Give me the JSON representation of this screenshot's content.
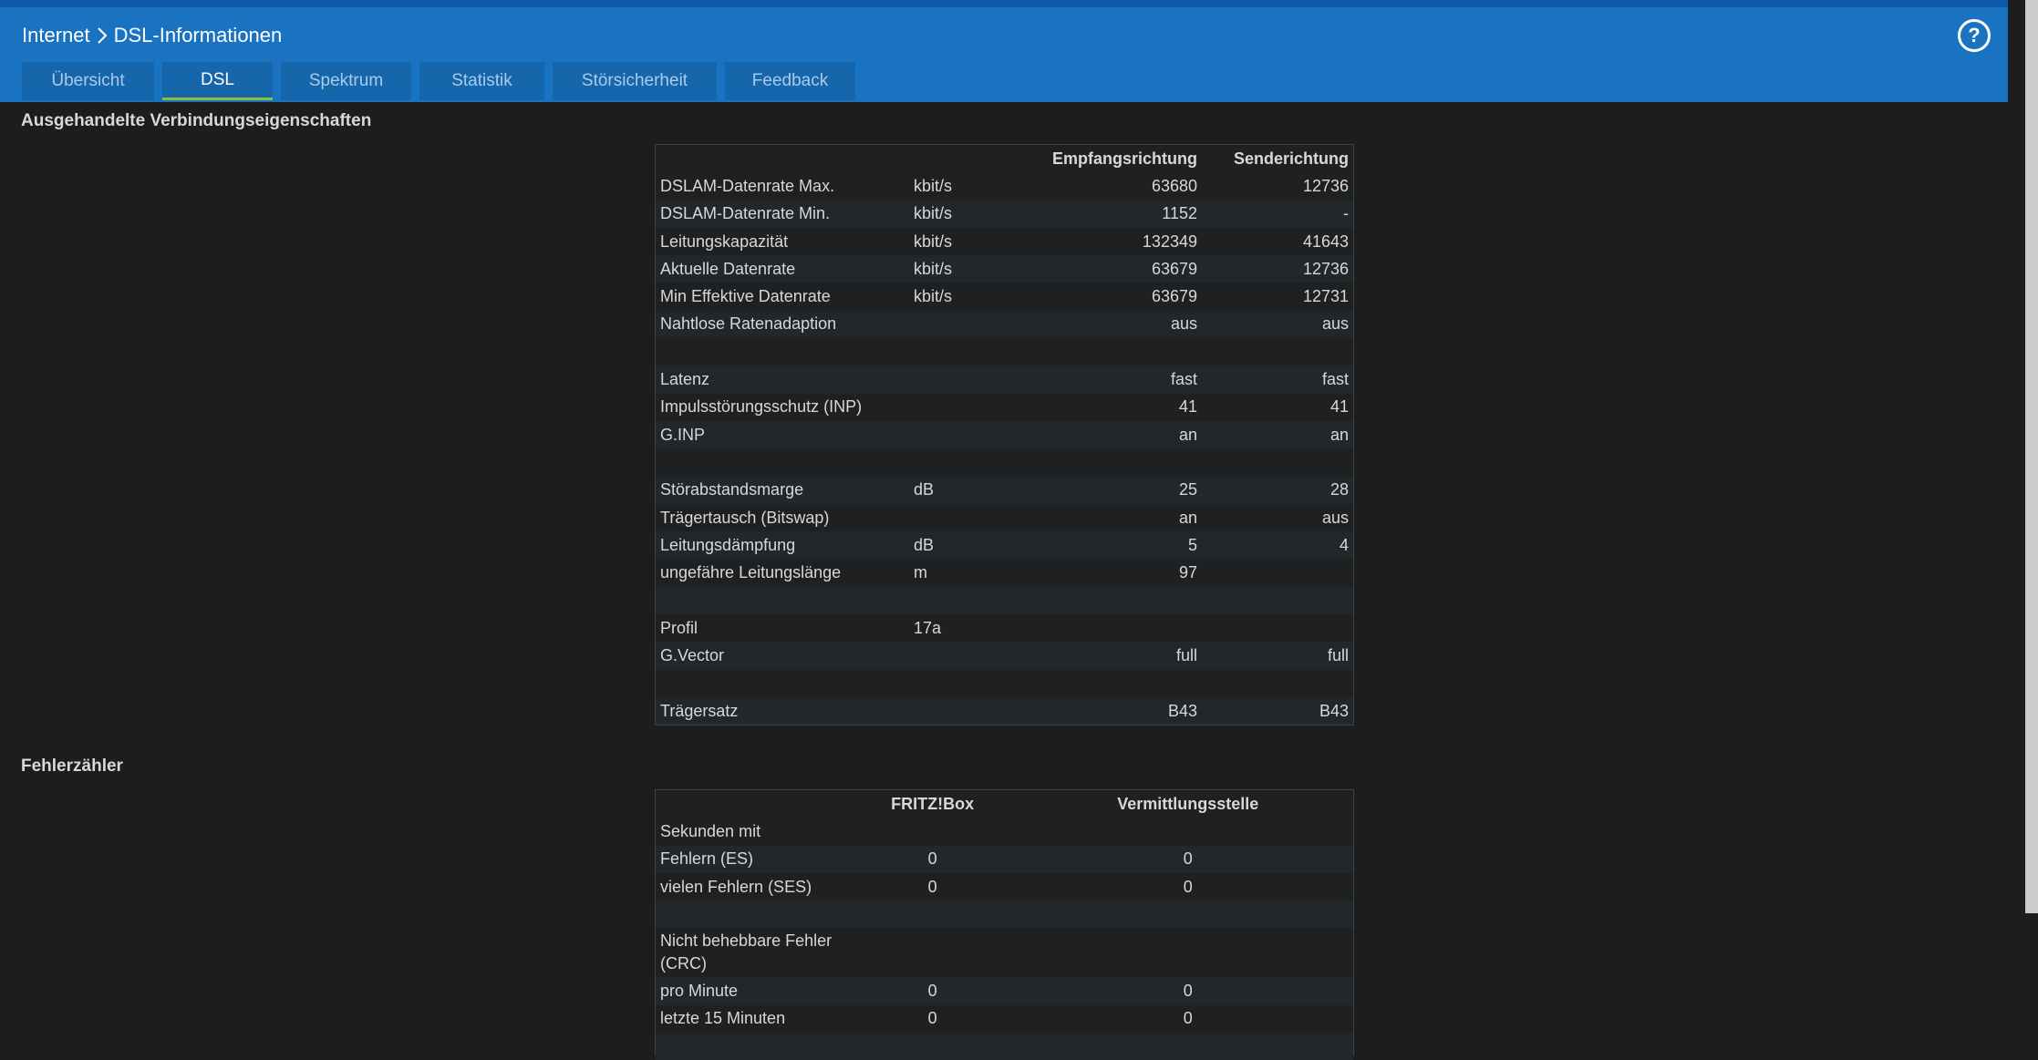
{
  "breadcrumb": {
    "parent": "Internet",
    "current": "DSL-Informationen"
  },
  "help_label": "?",
  "tabs": [
    {
      "label": "Übersicht",
      "active": false
    },
    {
      "label": "DSL",
      "active": true
    },
    {
      "label": "Spektrum",
      "active": false
    },
    {
      "label": "Statistik",
      "active": false
    },
    {
      "label": "Störsicherheit",
      "active": false
    },
    {
      "label": "Feedback",
      "active": false
    }
  ],
  "connection": {
    "title": "Ausgehandelte Verbindungseigenschaften",
    "headers": {
      "label": "",
      "unit": "",
      "rx": "Empfangsrichtung",
      "tx": "Senderichtung"
    },
    "rows": [
      {
        "label": "DSLAM-Datenrate Max.",
        "unit": "kbit/s",
        "rx": "63680",
        "tx": "12736"
      },
      {
        "label": "DSLAM-Datenrate Min.",
        "unit": "kbit/s",
        "rx": "1152",
        "tx": "-"
      },
      {
        "label": "Leitungskapazität",
        "unit": "kbit/s",
        "rx": "132349",
        "tx": "41643"
      },
      {
        "label": "Aktuelle Datenrate",
        "unit": "kbit/s",
        "rx": "63679",
        "tx": "12736"
      },
      {
        "label": "Min Effektive Datenrate",
        "unit": "kbit/s",
        "rx": "63679",
        "tx": "12731"
      },
      {
        "label": "Nahtlose Ratenadaption",
        "unit": "",
        "rx": "aus",
        "tx": "aus"
      },
      {
        "label": "",
        "unit": "",
        "rx": "",
        "tx": ""
      },
      {
        "label": "Latenz",
        "unit": "",
        "rx": "fast",
        "tx": "fast"
      },
      {
        "label": "Impulsstörungsschutz (INP)",
        "unit": "",
        "rx": "41",
        "tx": "41"
      },
      {
        "label": "G.INP",
        "unit": "",
        "rx": "an",
        "tx": "an"
      },
      {
        "label": "",
        "unit": "",
        "rx": "",
        "tx": ""
      },
      {
        "label": "Störabstandsmarge",
        "unit": "dB",
        "rx": "25",
        "tx": "28"
      },
      {
        "label": "Trägertausch (Bitswap)",
        "unit": "",
        "rx": "an",
        "tx": "aus"
      },
      {
        "label": "Leitungsdämpfung",
        "unit": "dB",
        "rx": "5",
        "tx": "4"
      },
      {
        "label": "ungefähre Leitungslänge",
        "unit": "m",
        "rx": "97",
        "tx": ""
      },
      {
        "label": "",
        "unit": "",
        "rx": "",
        "tx": ""
      },
      {
        "label": "Profil",
        "unit": "17a",
        "rx": "",
        "tx": ""
      },
      {
        "label": "G.Vector",
        "unit": "",
        "rx": "full",
        "tx": "full"
      },
      {
        "label": "",
        "unit": "",
        "rx": "",
        "tx": ""
      },
      {
        "label": "Trägersatz",
        "unit": "",
        "rx": "B43",
        "tx": "B43"
      }
    ]
  },
  "errors": {
    "title": "Fehlerzähler",
    "headers": {
      "label": "",
      "fritzbox": "FRITZ!Box",
      "exchange": "Vermittlungsstelle"
    },
    "rows": [
      {
        "label": "Sekunden mit",
        "fritzbox": "",
        "exchange": ""
      },
      {
        "label": "Fehlern (ES)",
        "fritzbox": "0",
        "exchange": "0"
      },
      {
        "label": "vielen Fehlern (SES)",
        "fritzbox": "0",
        "exchange": "0"
      },
      {
        "label": "",
        "fritzbox": "",
        "exchange": ""
      },
      {
        "label": "Nicht behebbare Fehler (CRC)",
        "fritzbox": "",
        "exchange": ""
      },
      {
        "label": "pro Minute",
        "fritzbox": "0",
        "exchange": "0"
      },
      {
        "label": "letzte 15 Minuten",
        "fritzbox": "0",
        "exchange": "0"
      },
      {
        "label": "",
        "fritzbox": "",
        "exchange": ""
      }
    ]
  }
}
